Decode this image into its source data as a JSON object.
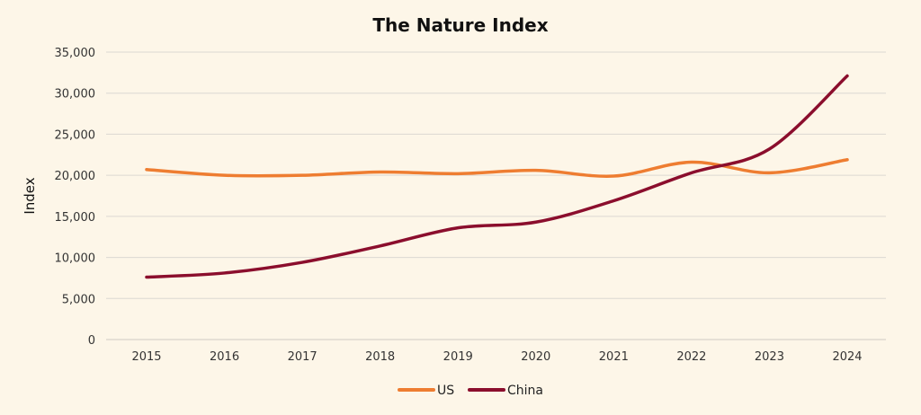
{
  "chart_data": {
    "type": "line",
    "title": "The Nature Index",
    "xlabel": "",
    "ylabel": "Index",
    "categories": [
      "2015",
      "2016",
      "2017",
      "2018",
      "2019",
      "2020",
      "2021",
      "2022",
      "2023",
      "2024"
    ],
    "y_ticks": [
      "0",
      "5,000",
      "10,000",
      "15,000",
      "20,000",
      "25,000",
      "30,000",
      "35,000"
    ],
    "ylim": [
      0,
      35000
    ],
    "grid": true,
    "legend_position": "bottom",
    "series": [
      {
        "name": "US",
        "color": "#ee7d31",
        "values": [
          20700,
          20000,
          20000,
          20400,
          20200,
          20600,
          19900,
          21600,
          20300,
          21900
        ]
      },
      {
        "name": "China",
        "color": "#8b0e2d",
        "values": [
          7600,
          8100,
          9400,
          11400,
          13600,
          14300,
          16900,
          20300,
          23200,
          32100
        ]
      }
    ]
  }
}
